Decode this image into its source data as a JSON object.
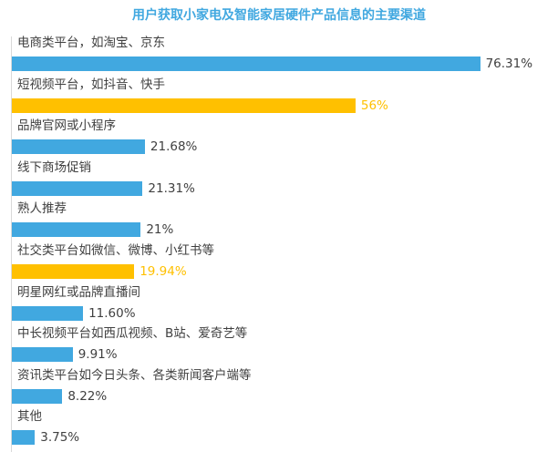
{
  "title": "用户获取小家电及智能家居硬件产品信息的主要渠道",
  "colors": {
    "blue": "#41a8e0",
    "gold": "#ffc000",
    "title": "#41a8e0",
    "label": "#404040",
    "axis": "#d9d9d9"
  },
  "rows": [
    {
      "label": "电商类平台，如淘宝、京东",
      "value": 76.31,
      "value_label": "76.31%",
      "color": "blue"
    },
    {
      "label": "短视频平台，如抖音、快手",
      "value": 56,
      "value_label": "56%",
      "color": "gold"
    },
    {
      "label": "品牌官网或小程序",
      "value": 21.68,
      "value_label": "21.68%",
      "color": "blue"
    },
    {
      "label": "线下商场促销",
      "value": 21.31,
      "value_label": "21.31%",
      "color": "blue"
    },
    {
      "label": "熟人推荐",
      "value": 21,
      "value_label": "21%",
      "color": "blue"
    },
    {
      "label": "社交类平台如微信、微博、小红书等",
      "value": 19.94,
      "value_label": "19.94%",
      "color": "gold"
    },
    {
      "label": "明星网红或品牌直播间",
      "value": 11.6,
      "value_label": "11.60%",
      "color": "blue"
    },
    {
      "label": "中长视频平台如西瓜视频、B站、爱奇艺等",
      "value": 9.91,
      "value_label": "9.91%",
      "color": "blue"
    },
    {
      "label": "资讯类平台如今日头条、各类新闻客户端等",
      "value": 8.22,
      "value_label": "8.22%",
      "color": "blue"
    },
    {
      "label": "其他",
      "value": 3.75,
      "value_label": "3.75%",
      "color": "blue"
    }
  ],
  "chart_data": {
    "type": "bar",
    "orientation": "horizontal",
    "title": "用户获取小家电及智能家居硬件产品信息的主要渠道",
    "categories": [
      "电商类平台，如淘宝、京东",
      "短视频平台，如抖音、快手",
      "品牌官网或小程序",
      "线下商场促销",
      "熟人推荐",
      "社交类平台如微信、微博、小红书等",
      "明星网红或品牌直播间",
      "中长视频平台如西瓜视频、B站、爱奇艺等",
      "资讯类平台如今日头条、各类新闻客户端等",
      "其他"
    ],
    "values": [
      76.31,
      56,
      21.68,
      21.31,
      21,
      19.94,
      11.6,
      9.91,
      8.22,
      3.75
    ],
    "value_labels": [
      "76.31%",
      "56%",
      "21.68%",
      "21.31%",
      "21%",
      "19.94%",
      "11.60%",
      "9.91%",
      "8.22%",
      "3.75%"
    ],
    "highlighted": [
      "短视频平台，如抖音、快手",
      "社交类平台如微信、微博、小红书等"
    ],
    "xlabel": "",
    "ylabel": "",
    "unit": "%",
    "grid": false,
    "legend": "none"
  }
}
